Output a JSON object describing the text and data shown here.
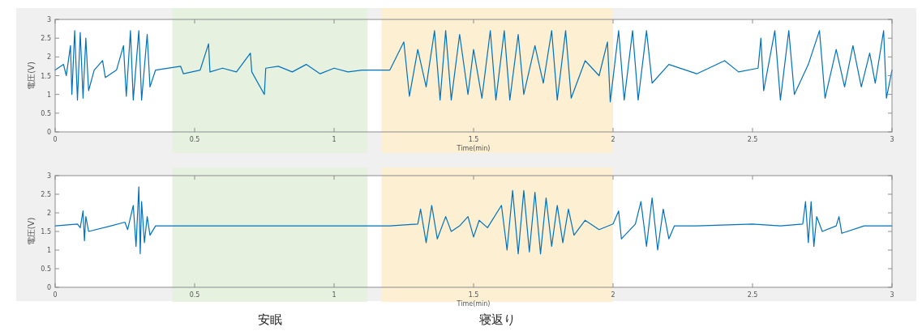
{
  "chart_data": [
    {
      "type": "line",
      "xlabel": "Time(min)",
      "ylabel": "電圧(V)",
      "xlim": [
        0,
        3
      ],
      "ylim": [
        0,
        3
      ],
      "xticks": [
        0,
        0.5,
        1,
        1.5,
        2,
        2.5,
        3
      ],
      "yticks": [
        0,
        0.5,
        1,
        1.5,
        2,
        2.5,
        3
      ],
      "grid": false,
      "series": [
        {
          "color": "#0072bd",
          "x": [
            0,
            0.03,
            0.04,
            0.055,
            0.06,
            0.07,
            0.08,
            0.09,
            0.1,
            0.11,
            0.12,
            0.14,
            0.17,
            0.18,
            0.22,
            0.245,
            0.255,
            0.27,
            0.28,
            0.3,
            0.31,
            0.33,
            0.34,
            0.36,
            0.45,
            0.46,
            0.52,
            0.55,
            0.555,
            0.6,
            0.65,
            0.7,
            0.705,
            0.75,
            0.755,
            0.8,
            0.85,
            0.9,
            0.95,
            1.0,
            1.05,
            1.1,
            1.2,
            1.25,
            1.27,
            1.3,
            1.33,
            1.36,
            1.38,
            1.4,
            1.42,
            1.45,
            1.48,
            1.5,
            1.53,
            1.56,
            1.58,
            1.61,
            1.63,
            1.66,
            1.68,
            1.72,
            1.75,
            1.78,
            1.8,
            1.83,
            1.85,
            1.9,
            1.95,
            1.98,
            1.99,
            2.02,
            2.04,
            2.07,
            2.09,
            2.12,
            2.14,
            2.2,
            2.3,
            2.4,
            2.45,
            2.52,
            2.53,
            2.54,
            2.58,
            2.6,
            2.63,
            2.65,
            2.7,
            2.74,
            2.76,
            2.8,
            2.83,
            2.86,
            2.89,
            2.92,
            2.94,
            2.97,
            2.98,
            3.0
          ],
          "values": [
            1.65,
            1.8,
            1.5,
            2.3,
            1.0,
            2.7,
            0.85,
            2.65,
            0.9,
            2.5,
            1.1,
            1.65,
            1.9,
            1.45,
            1.65,
            2.3,
            0.95,
            2.7,
            0.85,
            2.7,
            0.85,
            2.6,
            1.2,
            1.65,
            1.75,
            1.55,
            1.65,
            2.35,
            1.6,
            1.7,
            1.6,
            2.1,
            1.6,
            1.0,
            1.7,
            1.75,
            1.6,
            1.8,
            1.55,
            1.7,
            1.6,
            1.65,
            1.65,
            2.4,
            0.95,
            2.2,
            1.2,
            2.7,
            0.85,
            2.7,
            0.85,
            2.6,
            1.0,
            2.2,
            0.9,
            2.7,
            0.85,
            2.7,
            0.85,
            2.6,
            1.0,
            2.3,
            1.3,
            2.7,
            0.85,
            2.7,
            0.9,
            1.9,
            1.5,
            2.4,
            0.8,
            2.7,
            0.85,
            2.7,
            0.85,
            2.7,
            1.3,
            1.8,
            1.55,
            1.9,
            1.6,
            1.7,
            2.5,
            1.1,
            2.7,
            0.85,
            2.7,
            1.0,
            1.8,
            2.7,
            0.9,
            2.2,
            1.2,
            2.3,
            1.2,
            2.1,
            1.3,
            2.7,
            0.9,
            1.65
          ]
        }
      ],
      "bands": [
        {
          "axis": "x",
          "from": 0.42,
          "to": 1.12,
          "color": "#e6f1e0"
        },
        {
          "axis": "x",
          "from": 1.17,
          "to": 2.0,
          "color": "#fcefd2"
        }
      ]
    },
    {
      "type": "line",
      "xlabel": "Time(min)",
      "ylabel": "電圧(V)",
      "xlim": [
        0,
        3
      ],
      "ylim": [
        0,
        3
      ],
      "xticks": [
        0,
        0.5,
        1,
        1.5,
        2,
        2.5,
        3
      ],
      "yticks": [
        0,
        0.5,
        1,
        1.5,
        2,
        2.5,
        3
      ],
      "grid": false,
      "series": [
        {
          "color": "#0072bd",
          "x": [
            0,
            0.08,
            0.09,
            0.1,
            0.105,
            0.11,
            0.12,
            0.2,
            0.25,
            0.26,
            0.28,
            0.29,
            0.3,
            0.305,
            0.31,
            0.32,
            0.33,
            0.34,
            0.36,
            0.45,
            0.6,
            0.8,
            1.0,
            1.1,
            1.2,
            1.3,
            1.31,
            1.33,
            1.35,
            1.37,
            1.4,
            1.42,
            1.45,
            1.48,
            1.5,
            1.52,
            1.55,
            1.6,
            1.62,
            1.64,
            1.66,
            1.68,
            1.7,
            1.72,
            1.74,
            1.76,
            1.78,
            1.8,
            1.82,
            1.84,
            1.86,
            1.9,
            1.95,
            2.0,
            2.02,
            2.03,
            2.08,
            2.1,
            2.12,
            2.14,
            2.16,
            2.18,
            2.2,
            2.22,
            2.3,
            2.5,
            2.6,
            2.68,
            2.69,
            2.7,
            2.71,
            2.72,
            2.73,
            2.75,
            2.8,
            2.81,
            2.82,
            2.9,
            3.0
          ],
          "values": [
            1.65,
            1.7,
            1.6,
            2.05,
            1.25,
            1.9,
            1.5,
            1.65,
            1.75,
            1.55,
            2.2,
            1.1,
            2.7,
            0.9,
            2.3,
            1.2,
            1.9,
            1.4,
            1.65,
            1.65,
            1.65,
            1.65,
            1.65,
            1.65,
            1.65,
            1.7,
            2.1,
            1.2,
            2.2,
            1.3,
            1.9,
            1.5,
            1.65,
            1.9,
            1.35,
            1.8,
            1.6,
            2.2,
            1.0,
            2.6,
            0.9,
            2.6,
            0.95,
            2.55,
            0.9,
            2.4,
            1.1,
            2.2,
            1.2,
            2.1,
            1.4,
            1.8,
            1.55,
            1.7,
            2.05,
            1.3,
            1.7,
            2.3,
            1.1,
            2.4,
            1.0,
            2.1,
            1.3,
            1.65,
            1.65,
            1.7,
            1.65,
            1.7,
            2.3,
            1.2,
            2.3,
            1.1,
            1.9,
            1.5,
            1.65,
            1.9,
            1.45,
            1.65,
            1.65
          ]
        }
      ],
      "bands": [
        {
          "axis": "x",
          "from": 0.42,
          "to": 1.12,
          "color": "#e6f1e0",
          "label": "安眠"
        },
        {
          "axis": "x",
          "from": 1.17,
          "to": 2.0,
          "color": "#fcefd2",
          "label": "寝返り"
        }
      ]
    }
  ]
}
